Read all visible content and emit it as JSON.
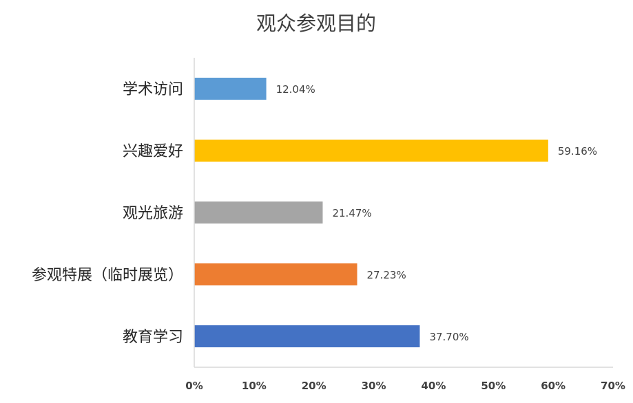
{
  "chart_data": {
    "type": "bar",
    "orientation": "horizontal",
    "title": "观众参观目的",
    "categories": [
      "学术访问",
      "兴趣爱好",
      "观光旅游",
      "参观特展（临时展览）",
      "教育学习"
    ],
    "values": [
      12.04,
      59.16,
      21.47,
      27.23,
      37.7
    ],
    "value_labels": [
      "12.04%",
      "59.16%",
      "21.47%",
      "27.23%",
      "37.70%"
    ],
    "bar_colors": [
      "#5b9bd5",
      "#ffc000",
      "#a5a5a5",
      "#ed7d31",
      "#4472c4"
    ],
    "x_ticks": [
      "0%",
      "10%",
      "20%",
      "30%",
      "40%",
      "50%",
      "60%",
      "70%"
    ],
    "xlim": [
      0,
      70
    ],
    "xlabel": "",
    "ylabel": "",
    "grid": false,
    "legend": "none"
  }
}
